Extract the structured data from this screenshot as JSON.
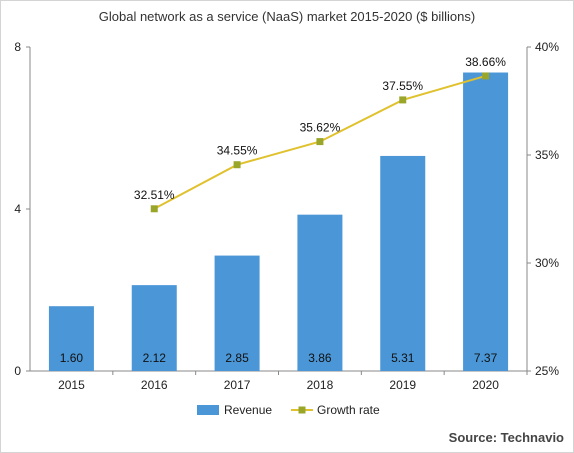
{
  "chart_data": {
    "type": "bar",
    "title": "Global network as a service (NaaS) market 2015-2020 ($ billions)",
    "categories": [
      "2015",
      "2016",
      "2017",
      "2018",
      "2019",
      "2020"
    ],
    "series": [
      {
        "name": "Revenue",
        "type": "bar",
        "axis": "left",
        "values": [
          1.6,
          2.12,
          2.85,
          3.86,
          5.31,
          7.37
        ],
        "labels": [
          "1.60",
          "2.12",
          "2.85",
          "3.86",
          "5.31",
          "7.37"
        ],
        "color": "#4a96d6"
      },
      {
        "name": "Growth rate",
        "type": "line",
        "axis": "right",
        "values": [
          null,
          32.51,
          34.55,
          35.62,
          37.55,
          38.66
        ],
        "labels": [
          "",
          "32.51%",
          "34.55%",
          "35.62%",
          "37.55%",
          "38.66%"
        ],
        "color": "#e0c12e",
        "marker_color": "#9aa62a"
      }
    ],
    "y_left": {
      "min": 0,
      "max": 8,
      "ticks": [
        0,
        4,
        8
      ],
      "tick_labels": [
        "0",
        "4",
        "8"
      ]
    },
    "y_right": {
      "min": 25,
      "max": 40,
      "ticks": [
        25,
        30,
        35,
        40
      ],
      "tick_labels": [
        "25%",
        "30%",
        "35%",
        "40%"
      ]
    },
    "legend": "bottom-center",
    "grid": false
  },
  "source": "Source: Technavio"
}
